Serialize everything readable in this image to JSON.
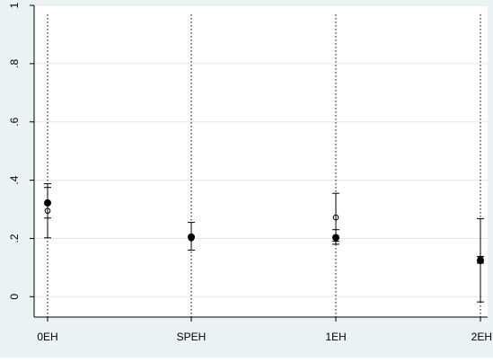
{
  "chart_data": {
    "type": "scatter",
    "title": "",
    "xlabel": "",
    "ylabel": "",
    "categories": [
      "0EH",
      "SPEH",
      "1EH",
      "2EH"
    ],
    "ylim": [
      -0.07,
      1.0
    ],
    "yticks": [
      0,
      0.2,
      0.4,
      0.6,
      0.8,
      1
    ],
    "ytick_labels": [
      "0",
      ".2",
      ".4",
      ".6",
      ".8",
      "1"
    ],
    "grid": true,
    "series": [
      {
        "marker": "filled-circle",
        "values": [
          0.322,
          0.205,
          0.203,
          0.124
        ],
        "ci_low": [
          0.27,
          0.16,
          0.18,
          0.115
        ],
        "ci_high": [
          0.375,
          0.255,
          0.23,
          0.138
        ]
      },
      {
        "marker": "hollow-circle",
        "values": [
          0.295,
          0.2,
          0.272,
          0.13
        ],
        "ci_low": [
          0.202,
          0.2,
          0.19,
          -0.018
        ],
        "ci_high": [
          0.388,
          0.2,
          0.355,
          0.268
        ]
      }
    ],
    "colors": {
      "outer_background": "#eaf2f3",
      "plot_background": "#ffffff",
      "grid": "#e3e8ea",
      "marks": "#000000",
      "text": "#000000"
    }
  }
}
